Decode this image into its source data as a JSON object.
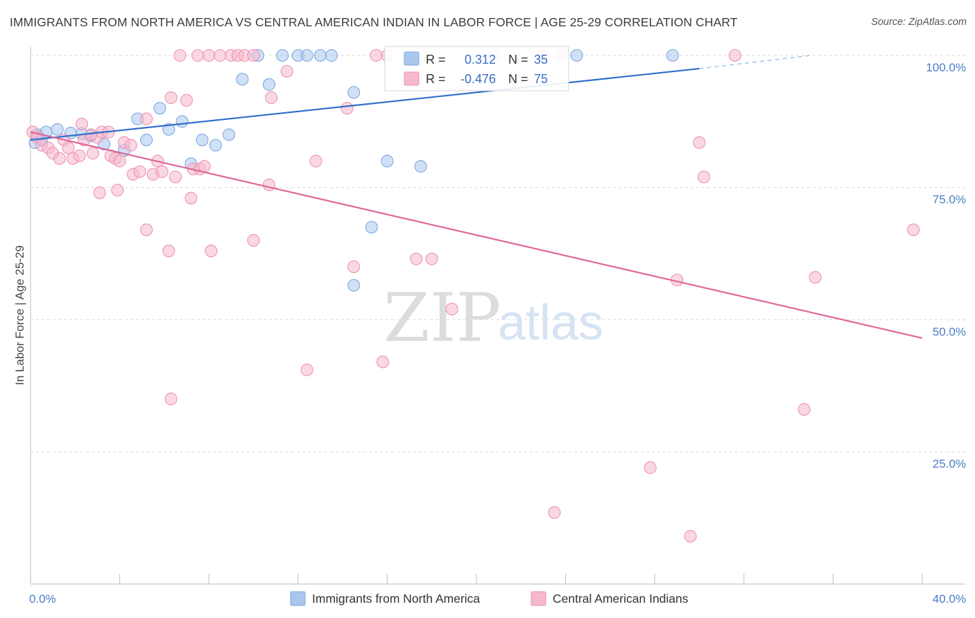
{
  "header": {
    "title": "IMMIGRANTS FROM NORTH AMERICA VS CENTRAL AMERICAN INDIAN IN LABOR FORCE | AGE 25-29 CORRELATION CHART",
    "source": "Source: ZipAtlas.com"
  },
  "watermark": {
    "zip": "ZIP",
    "atlas": "atlas"
  },
  "stats_box": {
    "rows": [
      {
        "r_label": "R =",
        "r_value": "0.312",
        "n_label": "N =",
        "n_value": "35",
        "color": "#a9c6ee"
      },
      {
        "r_label": "R =",
        "r_value": "-0.476",
        "n_label": "N =",
        "n_value": "75",
        "color": "#f6b8cc"
      }
    ]
  },
  "chart_data": {
    "type": "scatter",
    "title": "IMMIGRANTS FROM NORTH AMERICA VS CENTRAL AMERICAN INDIAN IN LABOR FORCE | AGE 25-29 CORRELATION CHART",
    "xlabel": "",
    "ylabel": "In Labor Force | Age 25-29",
    "xlim": [
      0,
      40
    ],
    "ylim": [
      0,
      105
    ],
    "x_tick_labels": [
      {
        "value": 0,
        "label": "0.0%"
      },
      {
        "value": 40,
        "label": "40.0%"
      }
    ],
    "y_tick_labels": [
      {
        "value": 25,
        "label": "25.0%"
      },
      {
        "value": 50,
        "label": "50.0%"
      },
      {
        "value": 75,
        "label": "75.0%"
      },
      {
        "value": 100,
        "label": "100.0%"
      }
    ],
    "grid": true,
    "legend_position": "bottom",
    "series": [
      {
        "name": "Immigrants from North America",
        "color": "#a9c6ee",
        "stroke": "#7ea8dd",
        "line_color": "#2f6fcc",
        "trend": {
          "x0": 0,
          "y0": 84.0,
          "x1": 30.0,
          "y1": 97.5,
          "dash_x1": 35.0,
          "dash_y1": 100.0
        },
        "points": [
          [
            0.2,
            83.5
          ],
          [
            0.3,
            85.0
          ],
          [
            0.5,
            84.0
          ],
          [
            0.7,
            85.5
          ],
          [
            1.2,
            86.0
          ],
          [
            1.8,
            85.3
          ],
          [
            2.3,
            85.2
          ],
          [
            2.7,
            84.8
          ],
          [
            3.3,
            83.2
          ],
          [
            4.2,
            82.0
          ],
          [
            4.8,
            88.0
          ],
          [
            5.2,
            84.0
          ],
          [
            5.8,
            90.0
          ],
          [
            6.2,
            86.0
          ],
          [
            6.8,
            87.5
          ],
          [
            7.2,
            79.5
          ],
          [
            7.7,
            84.0
          ],
          [
            8.3,
            83.0
          ],
          [
            8.9,
            85.0
          ],
          [
            9.5,
            95.5
          ],
          [
            10.2,
            100.0
          ],
          [
            10.7,
            94.5
          ],
          [
            11.3,
            100.0
          ],
          [
            12.0,
            100.0
          ],
          [
            12.4,
            100.0
          ],
          [
            13.0,
            100.0
          ],
          [
            13.5,
            100.0
          ],
          [
            14.5,
            93.0
          ],
          [
            15.3,
            67.5
          ],
          [
            14.5,
            56.5
          ],
          [
            16.0,
            80.0
          ],
          [
            17.5,
            79.0
          ],
          [
            20.8,
            100.0
          ],
          [
            24.5,
            100.0
          ],
          [
            28.8,
            100.0
          ]
        ]
      },
      {
        "name": "Central American Indians",
        "color": "#f6b8cc",
        "stroke": "#ee92b0",
        "line_color": "#e0659a",
        "trend": {
          "x0": 0,
          "y0": 85.5,
          "x1": 40.0,
          "y1": 46.5
        },
        "points": [
          [
            0.1,
            85.5
          ],
          [
            0.3,
            84.5
          ],
          [
            0.5,
            83.0
          ],
          [
            0.8,
            82.5
          ],
          [
            1.0,
            81.5
          ],
          [
            1.3,
            80.5
          ],
          [
            1.5,
            84.0
          ],
          [
            1.7,
            82.5
          ],
          [
            1.9,
            80.5
          ],
          [
            2.2,
            81.0
          ],
          [
            2.3,
            87.0
          ],
          [
            2.4,
            84.0
          ],
          [
            2.7,
            85.0
          ],
          [
            2.8,
            81.5
          ],
          [
            3.0,
            84.5
          ],
          [
            3.2,
            85.5
          ],
          [
            3.5,
            85.5
          ],
          [
            3.6,
            81.0
          ],
          [
            3.8,
            80.5
          ],
          [
            4.0,
            80.0
          ],
          [
            4.2,
            83.5
          ],
          [
            4.5,
            83.0
          ],
          [
            4.6,
            77.5
          ],
          [
            4.9,
            78.0
          ],
          [
            5.2,
            88.0
          ],
          [
            5.5,
            77.5
          ],
          [
            5.7,
            80.0
          ],
          [
            5.9,
            78.0
          ],
          [
            6.3,
            92.0
          ],
          [
            6.5,
            77.0
          ],
          [
            7.0,
            91.5
          ],
          [
            7.2,
            73.0
          ],
          [
            7.3,
            78.5
          ],
          [
            7.6,
            78.5
          ],
          [
            7.8,
            79.0
          ],
          [
            3.1,
            74.0
          ],
          [
            3.9,
            74.5
          ],
          [
            5.2,
            67.0
          ],
          [
            6.2,
            63.0
          ],
          [
            8.1,
            63.0
          ],
          [
            10.0,
            65.0
          ],
          [
            10.7,
            75.5
          ],
          [
            10.8,
            92.0
          ],
          [
            11.5,
            97.0
          ],
          [
            9.0,
            100.0
          ],
          [
            9.3,
            100.0
          ],
          [
            9.6,
            100.0
          ],
          [
            10.0,
            100.0
          ],
          [
            7.5,
            100.0
          ],
          [
            8.0,
            100.0
          ],
          [
            6.7,
            100.0
          ],
          [
            8.5,
            100.0
          ],
          [
            14.2,
            90.0
          ],
          [
            12.8,
            80.0
          ],
          [
            14.5,
            60.0
          ],
          [
            16.0,
            100.0
          ],
          [
            17.3,
            61.5
          ],
          [
            18.0,
            61.5
          ],
          [
            18.9,
            52.0
          ],
          [
            12.4,
            40.5
          ],
          [
            15.8,
            42.0
          ],
          [
            6.3,
            35.0
          ],
          [
            23.0,
            100.0
          ],
          [
            23.8,
            100.0
          ],
          [
            29.0,
            57.5
          ],
          [
            30.0,
            83.5
          ],
          [
            30.2,
            77.0
          ],
          [
            31.6,
            100.0
          ],
          [
            35.2,
            58.0
          ],
          [
            39.6,
            67.0
          ],
          [
            34.7,
            33.0
          ],
          [
            27.8,
            22.0
          ],
          [
            23.5,
            13.5
          ],
          [
            29.6,
            9.0
          ],
          [
            15.5,
            100.0
          ]
        ]
      }
    ]
  }
}
